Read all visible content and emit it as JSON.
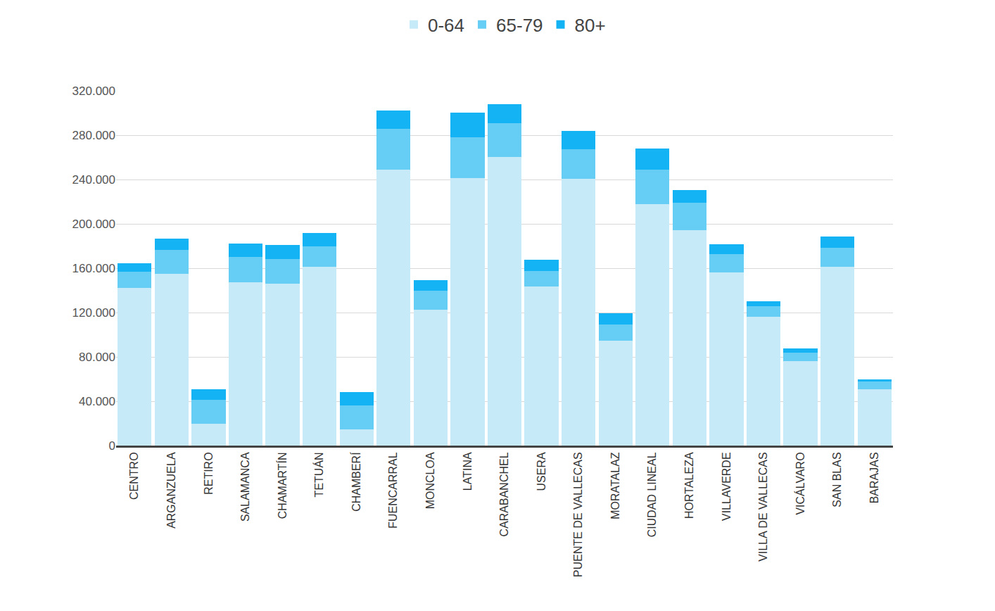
{
  "chart_data": {
    "type": "bar",
    "stacked": true,
    "grid": true,
    "legend": "top",
    "categories": [
      "CENTRO",
      "ARGANZUELA",
      "RETIRO",
      "SALAMANCA",
      "CHAMARTÍN",
      "TETUÁN",
      "CHAMBERÍ",
      "FUENCARRAL",
      "MONCLOA",
      "LATINA",
      "CARABANCHEL",
      "USERA",
      "PUENTE DE VALLECAS",
      "MORATALAZ",
      "CIUDAD LINEAL",
      "HORTALEZA",
      "VILLAVERDE",
      "VILLA DE VALLECAS",
      "VICÁLVARO",
      "SAN BLAS",
      "BARAJAS"
    ],
    "series": [
      {
        "name": "0-64",
        "color": "#c6eaf8",
        "values": [
          142000,
          155000,
          19500,
          147500,
          146000,
          161000,
          14500,
          249000,
          122500,
          241500,
          260500,
          143500,
          240500,
          94500,
          217500,
          194000,
          156000,
          116000,
          76000,
          161000,
          51000
        ]
      },
      {
        "name": "65-79",
        "color": "#66cdf5",
        "values": [
          15000,
          21500,
          21500,
          22500,
          22500,
          19000,
          21500,
          36500,
          17500,
          36500,
          30000,
          14000,
          26500,
          15000,
          31500,
          25000,
          16500,
          10000,
          7500,
          17500,
          6500
        ]
      },
      {
        "name": "80+",
        "color": "#14b4f4",
        "values": [
          7500,
          10000,
          10000,
          12500,
          12500,
          11500,
          12500,
          16500,
          9000,
          22500,
          17500,
          10000,
          16500,
          10000,
          19000,
          11500,
          9000,
          4000,
          4000,
          10000,
          2500
        ]
      }
    ],
    "ylim": [
      0,
      320000
    ],
    "yticks": [
      0,
      {
        "value": 40000,
        "label": "40.000"
      },
      {
        "value": 80000,
        "label": "80.000"
      },
      {
        "value": 120000,
        "label": "120.000"
      },
      {
        "value": 160000,
        "label": "160.000"
      },
      {
        "value": 200000,
        "label": "200.000"
      },
      {
        "value": 240000,
        "label": "240.000"
      },
      {
        "value": 280000,
        "label": "280.000"
      },
      {
        "value": 320000,
        "label": "320.000"
      }
    ]
  }
}
